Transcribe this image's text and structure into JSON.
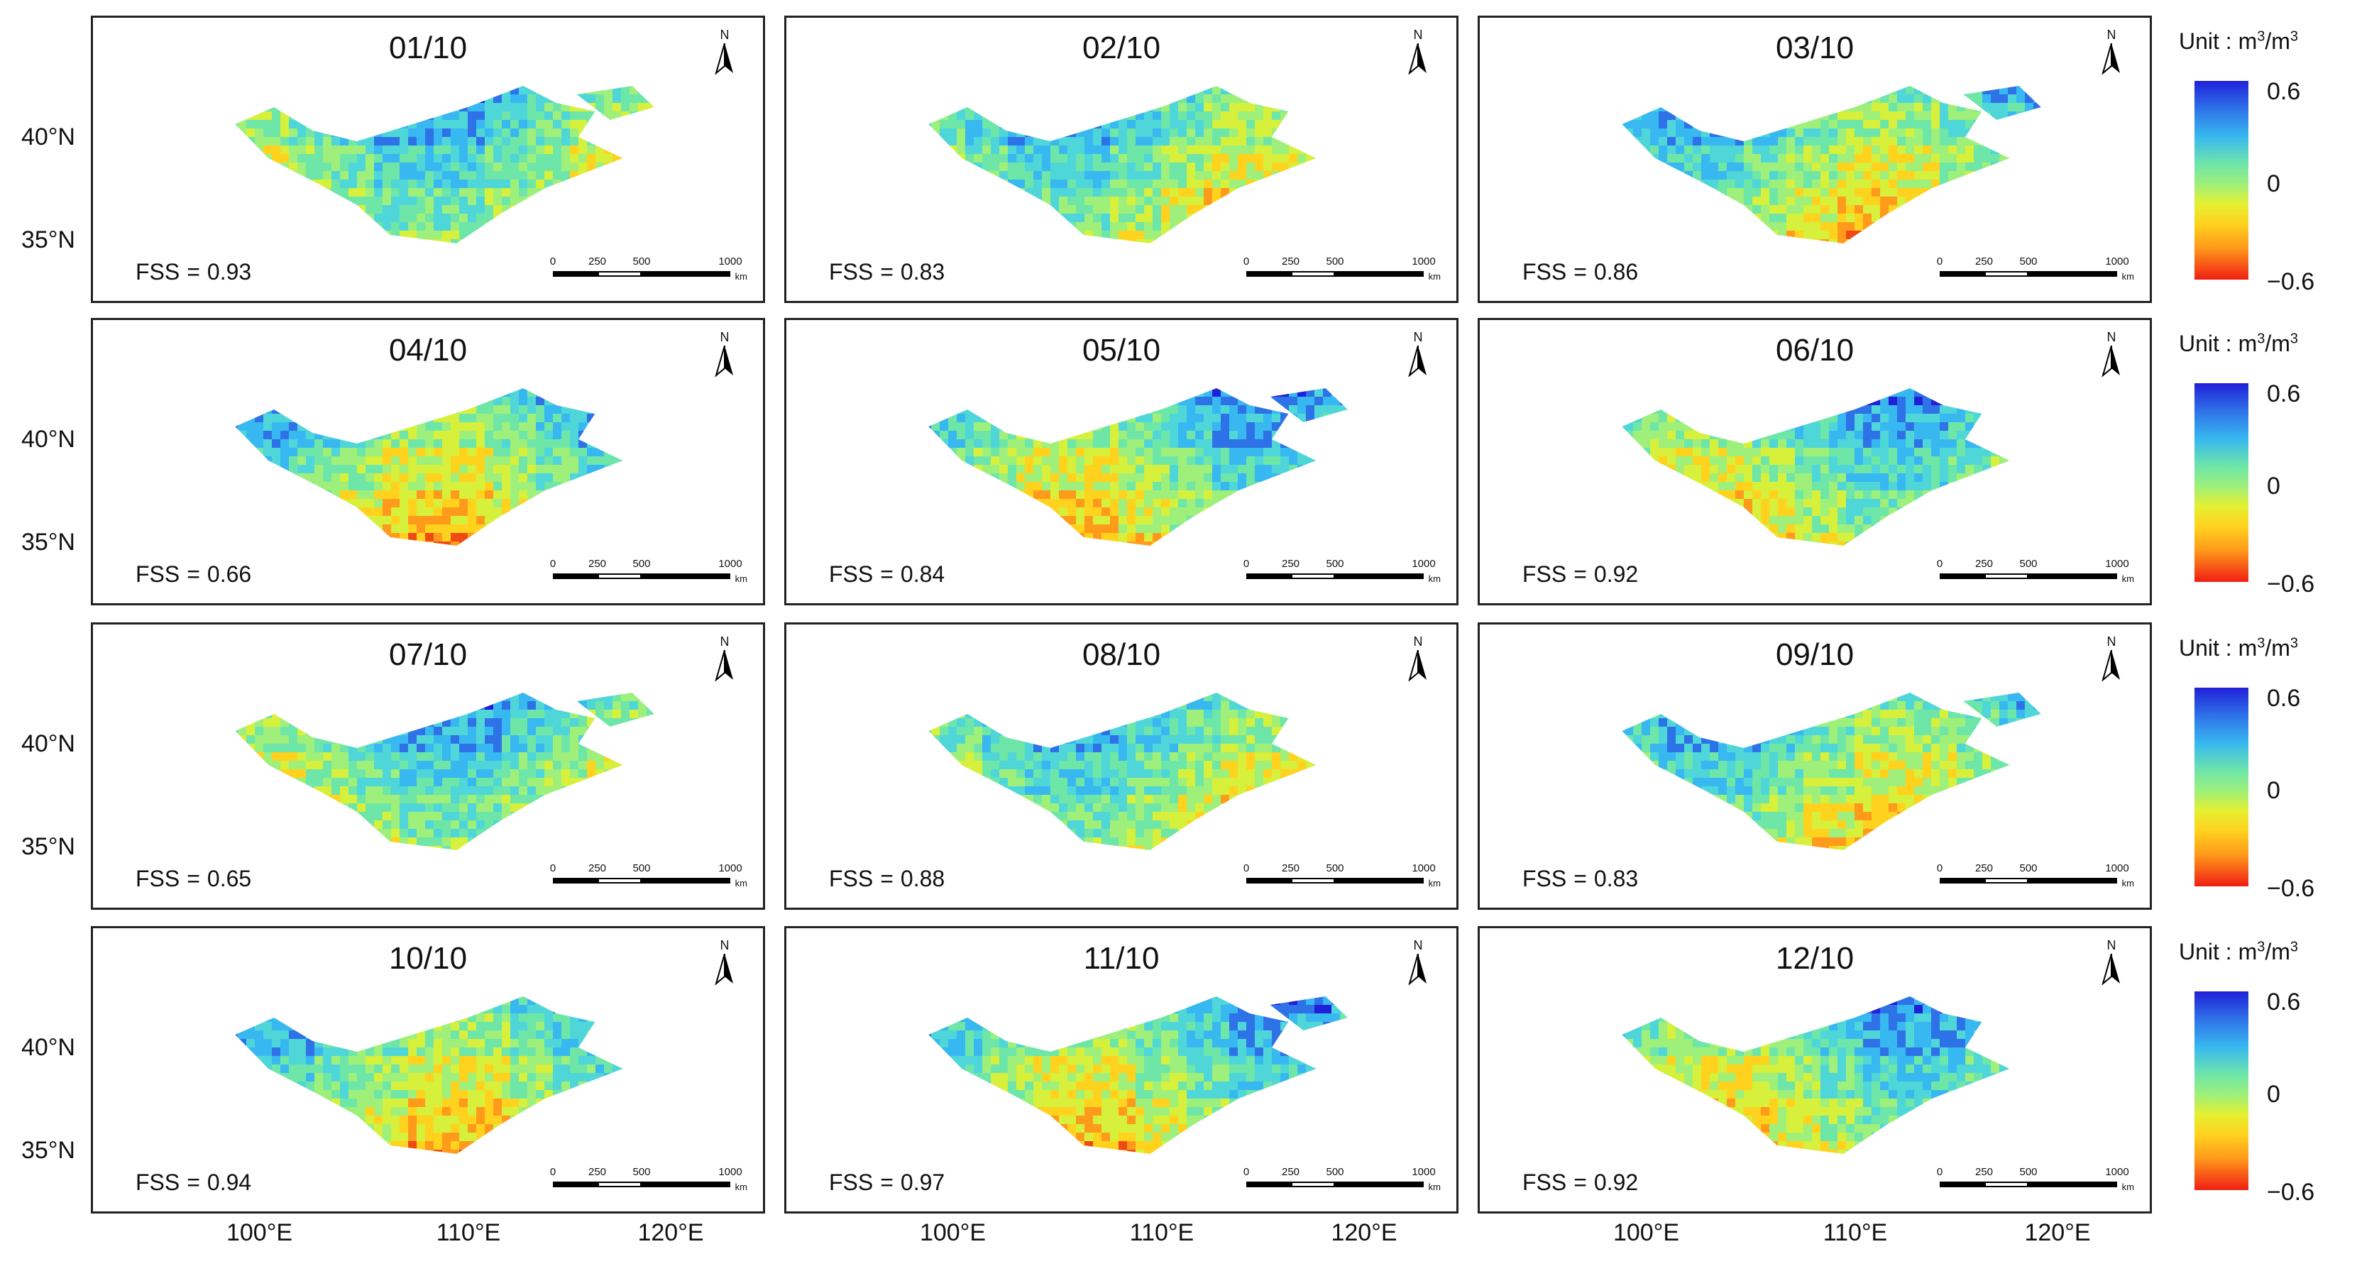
{
  "figure": {
    "panels": [
      {
        "date": "01/10",
        "fss_label": "FSS",
        "fss_value": "0.93"
      },
      {
        "date": "02/10",
        "fss_label": "FSS",
        "fss_value": "0.83"
      },
      {
        "date": "03/10",
        "fss_label": "FSS",
        "fss_value": "0.86"
      },
      {
        "date": "04/10",
        "fss_label": "FSS",
        "fss_value": "0.66"
      },
      {
        "date": "05/10",
        "fss_label": "FSS",
        "fss_value": "0.84"
      },
      {
        "date": "06/10",
        "fss_label": "FSS",
        "fss_value": "0.92"
      },
      {
        "date": "07/10",
        "fss_label": "FSS",
        "fss_value": "0.65"
      },
      {
        "date": "08/10",
        "fss_label": "FSS",
        "fss_value": "0.88"
      },
      {
        "date": "09/10",
        "fss_label": "FSS",
        "fss_value": "0.83"
      },
      {
        "date": "10/10",
        "fss_label": "FSS",
        "fss_value": "0.94"
      },
      {
        "date": "11/10",
        "fss_label": "FSS",
        "fss_value": "0.97"
      },
      {
        "date": "12/10",
        "fss_label": "FSS",
        "fss_value": "0.92"
      }
    ],
    "lat_labels": [
      "40°N",
      "35°N"
    ],
    "lon_labels": [
      "100°E",
      "110°E",
      "120°E"
    ],
    "north_label": "N",
    "scale_bar": {
      "ticks": [
        "0",
        "250",
        "500",
        "1000"
      ],
      "unit": "km"
    },
    "legend": {
      "unit_label": "Unit : m",
      "unit_exp": "3",
      "unit_sep": "/m",
      "max": "0.6",
      "mid": "0",
      "min": "−0.6"
    },
    "colors": {
      "high": "#2020d8",
      "mid_high": "#38b8f0",
      "mid": "#9ef07a",
      "mid_low": "#ffd21e",
      "low": "#f01e14"
    }
  }
}
